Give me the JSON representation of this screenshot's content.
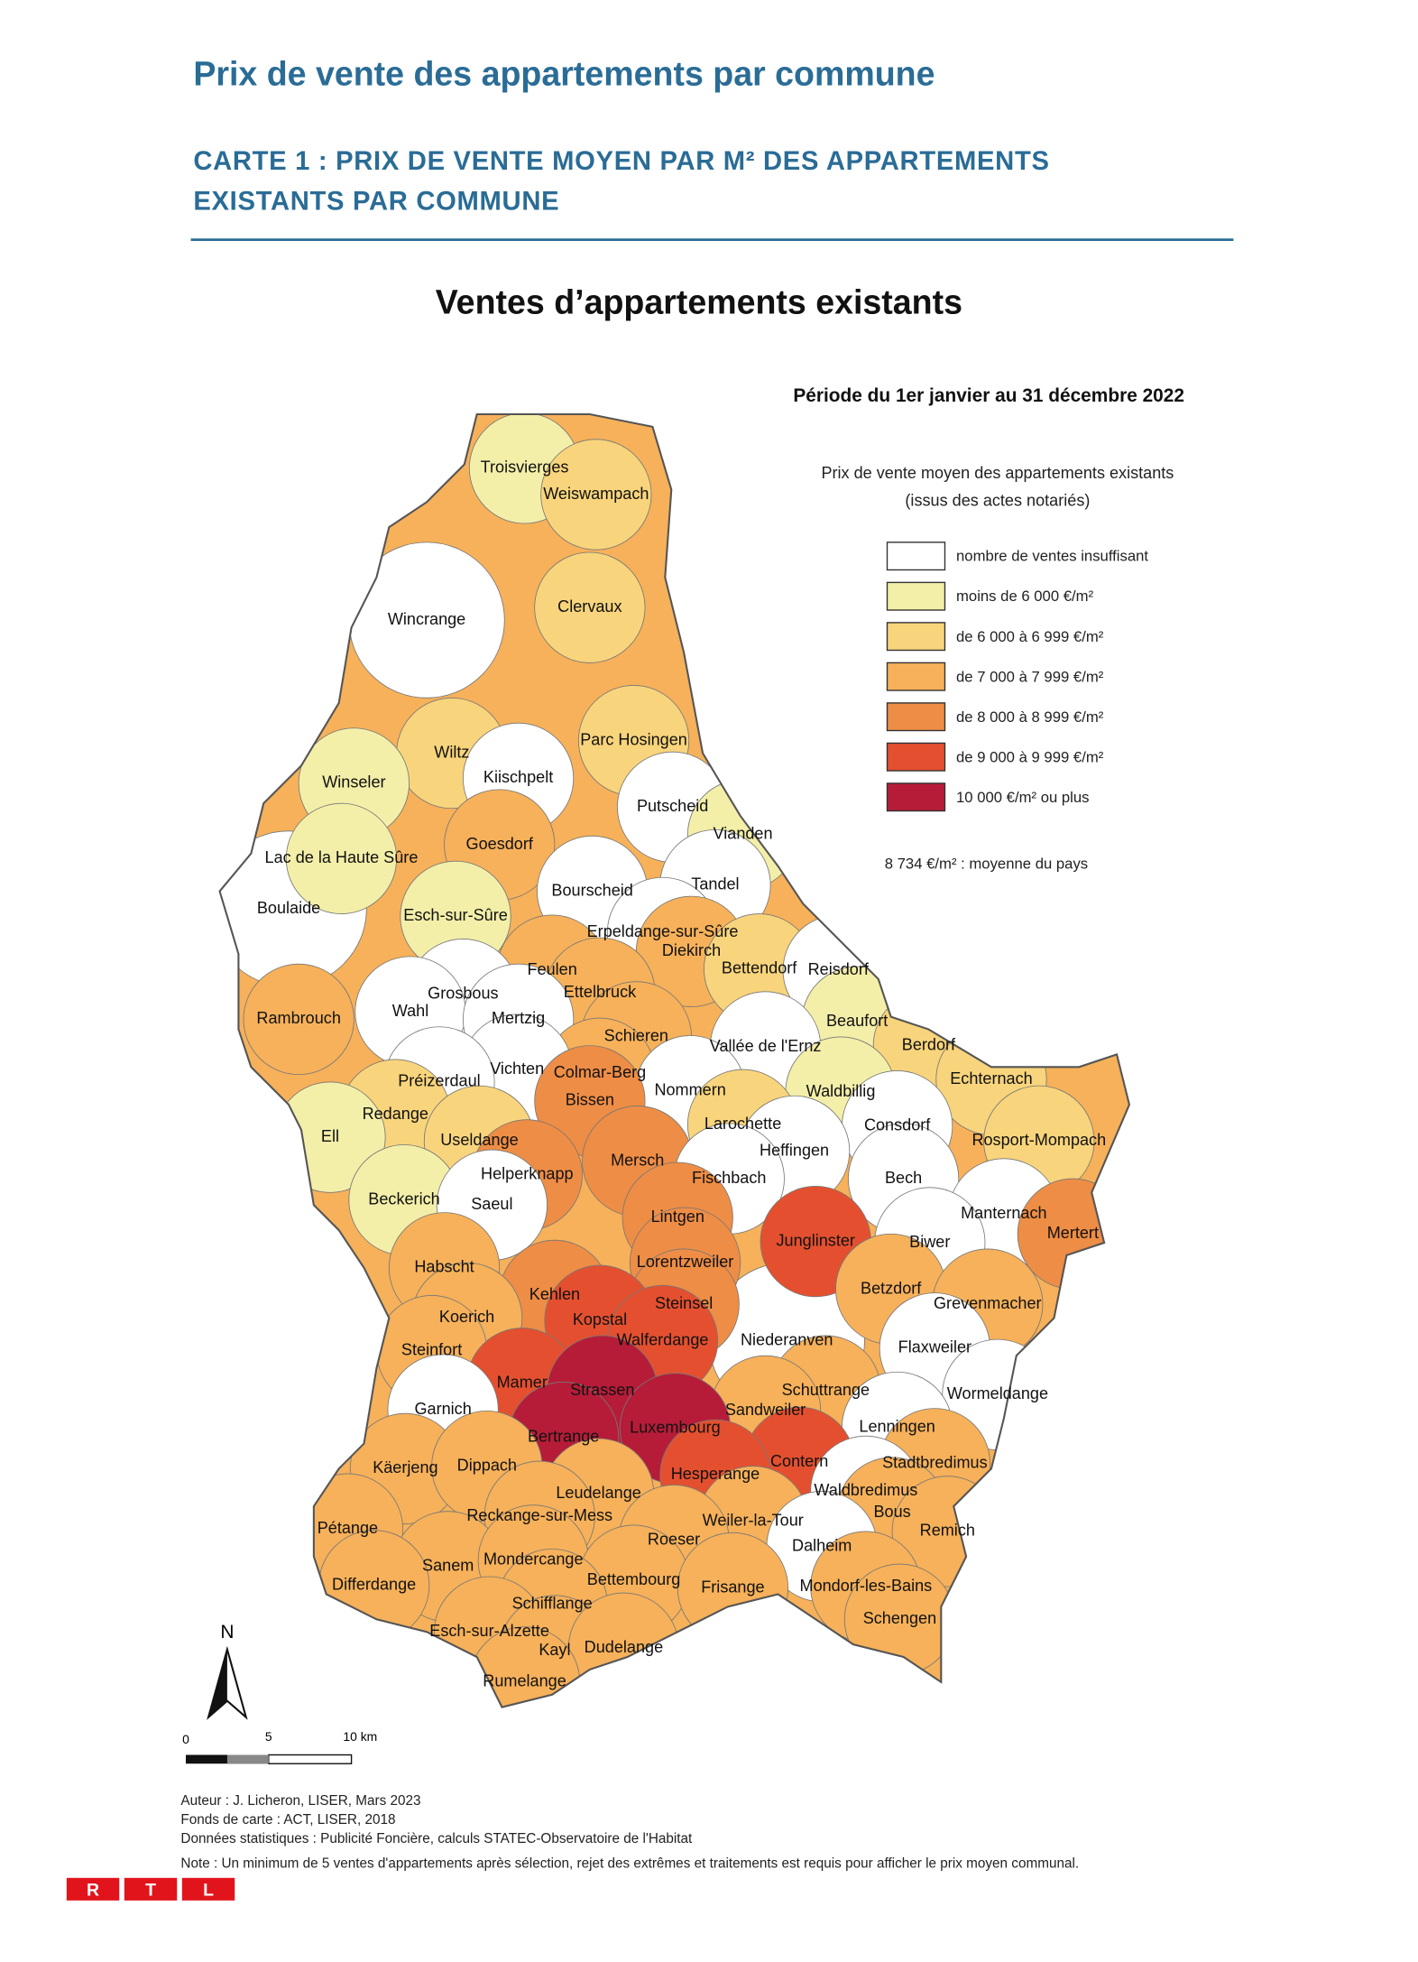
{
  "header": {
    "title": "Prix de vente des appartements par commune",
    "subtitle_lines": [
      "CARTE 1 : PRIX DE VENTE MOYEN PAR M² DES APPARTEMENTS",
      "EXISTANTS PAR COMMUNE"
    ]
  },
  "map": {
    "title": "Ventes d’appartements existants",
    "period": "Période du 1er janvier au 31 décembre 2022",
    "legend": {
      "title_lines": [
        "Prix de vente moyen des appartements existants",
        "(issus des actes notariés)"
      ],
      "items": [
        {
          "label": "nombre de ventes insuffisant",
          "color": "#ffffff"
        },
        {
          "label": "moins de 6 000 €/m²",
          "color": "#f3efa9"
        },
        {
          "label": "de 6 000 à 6 999 €/m²",
          "color": "#f8d47c"
        },
        {
          "label": "de 7 000 à 7 999 €/m²",
          "color": "#f6b15a"
        },
        {
          "label": "de 8 000 à 8 999 €/m²",
          "color": "#ee8d45"
        },
        {
          "label": "de 9 000 à 9 999 €/m²",
          "color": "#e4502f"
        },
        {
          "label": "10 000 €/m² ou plus",
          "color": "#b61c38"
        }
      ],
      "average": "8 734 €/m² : moyenne du pays"
    },
    "communes": [
      "Troisvierges",
      "Weiswampach",
      "Wincrange",
      "Clervaux",
      "Wiltz",
      "Winseler",
      "Kiischpelt",
      "Parc Hosingen",
      "Putscheid",
      "Vianden",
      "Lac de la Haute Sûre",
      "Goesdorf",
      "Tandel",
      "Boulaide",
      "Bourscheid",
      "Esch-sur-Sûre",
      "Erpeldange-sur-Sûre",
      "Diekirch",
      "Bettendorf",
      "Reisdorf",
      "Feulen",
      "Ettelbruck",
      "Grosbous",
      "Rambrouch",
      "Wahl",
      "Mertzig",
      "Beaufort",
      "Schieren",
      "Vallée de l'Ernz",
      "Berdorf",
      "Colmar-Berg",
      "Vichten",
      "Préizerdaul",
      "Echternach",
      "Nommern",
      "Waldbillig",
      "Bissen",
      "Redange",
      "Larochette",
      "Consdorf",
      "Ell",
      "Useldange",
      "Rosport-Mompach",
      "Heffingen",
      "Mersch",
      "Helperknapp",
      "Fischbach",
      "Bech",
      "Beckerich",
      "Saeul",
      "Lintgen",
      "Manternach",
      "Junglinster",
      "Mertert",
      "Biwer",
      "Habscht",
      "Lorentzweiler",
      "Betzdorf",
      "Kehlen",
      "Steinsel",
      "Grevenmacher",
      "Koerich",
      "Kopstal",
      "Walferdange",
      "Niederanven",
      "Steinfort",
      "Flaxweiler",
      "Mamer",
      "Strassen",
      "Schuttrange",
      "Wormeldange",
      "Garnich",
      "Sandweiler",
      "Luxembourg",
      "Lenningen",
      "Bertrange",
      "Contern",
      "Stadtbredimus",
      "Käerjeng",
      "Dippach",
      "Hesperange",
      "Leudelange",
      "Waldbredimus",
      "Bous",
      "Pétange",
      "Reckange-sur-Mess",
      "Weiler-la-Tour",
      "Remich",
      "Roeser",
      "Dalheim",
      "Sanem",
      "Mondercange",
      "Differdange",
      "Bettembourg",
      "Frisange",
      "Mondorf-les-Bains",
      "Schengen",
      "Schifflange",
      "Esch-sur-Alzette",
      "Kayl",
      "Dudelange",
      "Rumelange"
    ],
    "north": "N",
    "scale": {
      "labels": [
        "0",
        "5",
        "10 km"
      ]
    }
  },
  "credits": [
    "Auteur : J. Licheron, LISER, Mars 2023",
    "Fonds de carte : ACT, LISER, 2018",
    "Données statistiques :  Publicité Foncière, calculs STATEC-Observatoire de l'Habitat",
    "Note : Un minimum de 5 ventes d'appartements après sélection, rejet des extrêmes et traitements est requis pour afficher le prix moyen communal."
  ],
  "logo": [
    "R",
    "T",
    "L"
  ]
}
